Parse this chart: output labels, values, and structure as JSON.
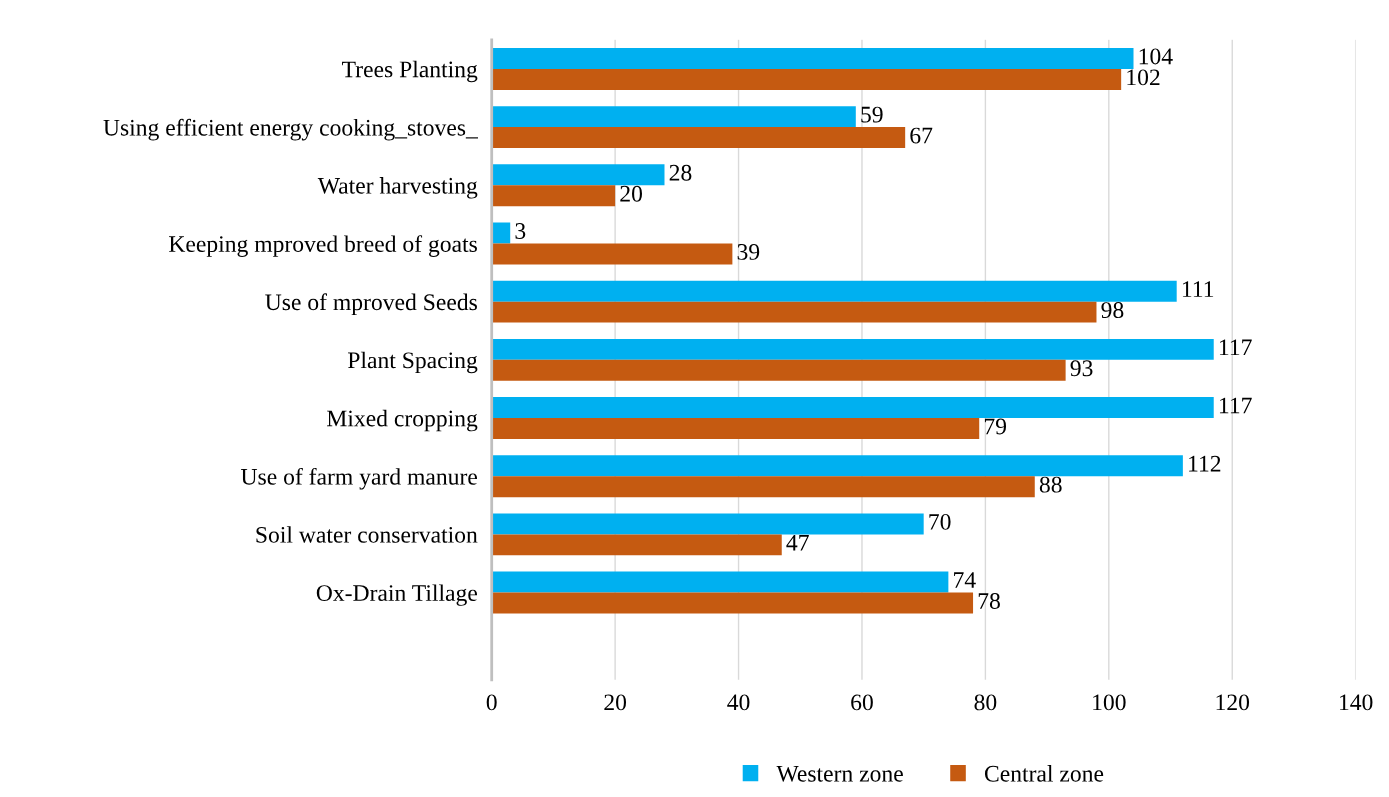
{
  "chart_data": {
    "type": "bar",
    "orientation": "horizontal",
    "categories": [
      "Trees Planting",
      "Using efficient energy cooking_stoves_",
      "Water harvesting",
      "Keeping mproved breed of goats",
      "Use of mproved Seeds",
      "Plant Spacing",
      "Mixed cropping",
      "Use of farm yard manure",
      "Soil water conservation",
      "Ox-Drain Tillage",
      null
    ],
    "series": [
      {
        "name": "Western zone",
        "color": "#00b0f0",
        "values": [
          104,
          59,
          28,
          3,
          111,
          117,
          117,
          112,
          70,
          74,
          null
        ]
      },
      {
        "name": "Central zone",
        "color": "#c55a11",
        "values": [
          102,
          67,
          20,
          39,
          98,
          93,
          79,
          88,
          47,
          78,
          null
        ]
      }
    ],
    "xlim": [
      0,
      140
    ],
    "xticks": [
      0,
      20,
      40,
      60,
      80,
      100,
      120,
      140
    ],
    "grid": "x",
    "legend": "bottom",
    "data_labels": true
  }
}
